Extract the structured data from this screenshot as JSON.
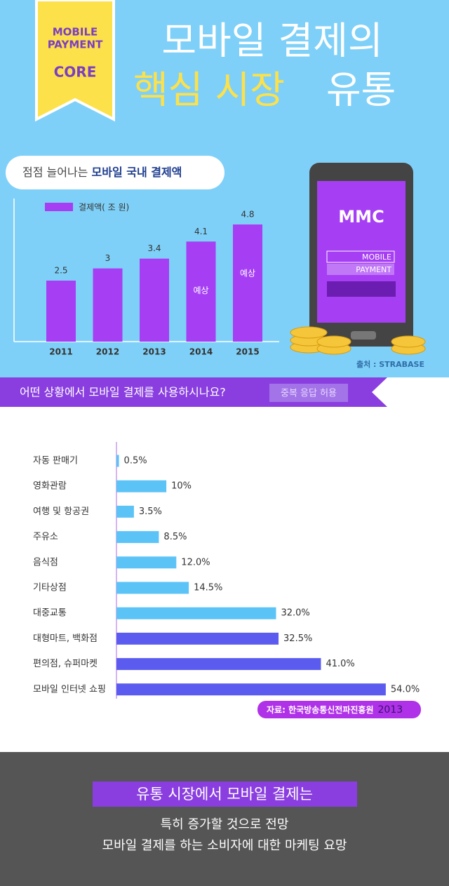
{
  "badge": {
    "line1": "MOBILE",
    "line2": "PAYMENT",
    "line3": "CORE"
  },
  "title": {
    "line1": "모바일 결제의",
    "line2a": "핵심 시장",
    "line2b": "유통"
  },
  "phone": {
    "logo": "MMC",
    "line1": "MOBILE",
    "line2": "PAYMENT"
  },
  "source1": "출처 : STRABASE",
  "question": "어떤 상황에서 모바일 결제를 사용하시나요?",
  "question_badge": "중복 응답 허용",
  "source2": "자료: 한국방송통신전파진흥원",
  "source2_year": "2013",
  "conclusion": {
    "heading": "유통 시장에서 모바일 결제는",
    "line1": "특히 증가할 것으로 전망",
    "line2": "모바일 결제를 하는 소비자에 대한 마케팅 요망"
  },
  "chart_data": [
    {
      "type": "bar",
      "subtitle": {
        "pre": "점점 늘어나는 ",
        "bold": "모바일 국내 결제액"
      },
      "categories": [
        "2011",
        "2012",
        "2013",
        "2014",
        "2015"
      ],
      "series": [
        {
          "name": "결제액( 조 원)",
          "color": "#a63ef4",
          "values": [
            2.5,
            3,
            3.4,
            4.1,
            4.8
          ]
        }
      ],
      "annotations": [
        null,
        null,
        null,
        "예상",
        "예상"
      ],
      "ylim": [
        0,
        5
      ]
    },
    {
      "type": "hbar",
      "categories": [
        "자동 판매기",
        "영화관람",
        "여행 및 항공권",
        "주유소",
        "음식점",
        "기타상점",
        "대중교통",
        "대형마트, 백화점",
        "편의점, 슈퍼마켓",
        "모바일 인터넷 쇼핑"
      ],
      "values": [
        0.5,
        10,
        3.5,
        8.5,
        12,
        14.5,
        32,
        32.5,
        41,
        54
      ],
      "value_labels": [
        "0.5%",
        "10%",
        "3.5%",
        "8.5%",
        "12.0%",
        "14.5%",
        "32.0%",
        "32.5%",
        "41.0%",
        "54.0%"
      ],
      "colors": [
        "#5cc3f7",
        "#5cc3f7",
        "#5cc3f7",
        "#5cc3f7",
        "#5cc3f7",
        "#5cc3f7",
        "#5cc3f7",
        "#5b5cef",
        "#5b5cef",
        "#5b5cef"
      ],
      "xlim": [
        0,
        55
      ]
    }
  ]
}
